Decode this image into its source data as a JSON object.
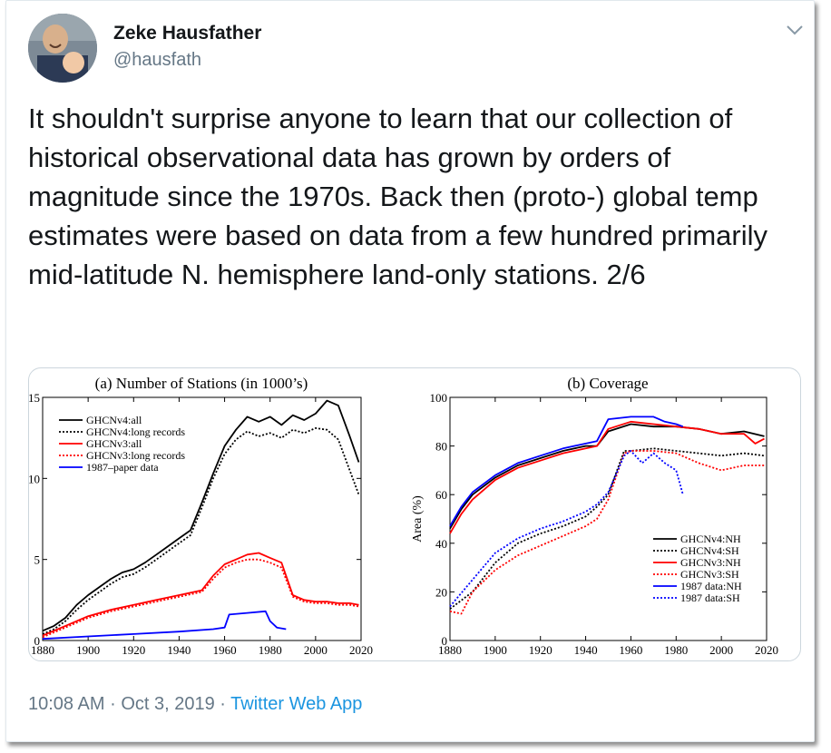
{
  "tweet": {
    "author_name": "Zeke Hausfather",
    "author_handle": "@hausfath",
    "text": "It shouldn't surprise anyone to learn that our collection of historical observational data has grown by orders of magnitude since the 1970s. Back then (proto-) global temp estimates were based on data from a few hundred primarily mid-latitude N. hemisphere land-only stations. 2/6",
    "time": "10:08 AM",
    "separator": "·",
    "date": "Oct 3, 2019",
    "app": "Twitter Web App",
    "icons": {
      "avatar": "avatar",
      "menu": "chevron-down-icon"
    }
  },
  "chart_data": [
    {
      "type": "line",
      "title": "(a) Number of Stations (in 1000’s)",
      "xlim": [
        1880,
        2020
      ],
      "ylim": [
        0,
        15
      ],
      "xticks": [
        1880,
        1900,
        1920,
        1940,
        1960,
        1980,
        2000,
        2020
      ],
      "yticks": [
        0,
        5,
        10,
        15
      ],
      "legend_position": "top-left",
      "series": [
        {
          "name": "GHCNv4:all",
          "color": "#000000",
          "dash": "solid",
          "x": [
            1880,
            1885,
            1890,
            1895,
            1900,
            1905,
            1910,
            1915,
            1920,
            1925,
            1930,
            1935,
            1940,
            1945,
            1950,
            1955,
            1960,
            1965,
            1970,
            1975,
            1980,
            1985,
            1990,
            1995,
            2000,
            2005,
            2010,
            2015,
            2019
          ],
          "y": [
            0.6,
            0.9,
            1.4,
            2.2,
            2.8,
            3.3,
            3.8,
            4.2,
            4.4,
            4.8,
            5.3,
            5.8,
            6.3,
            6.8,
            8.5,
            10.3,
            12.0,
            13.0,
            13.8,
            13.5,
            13.8,
            13.3,
            13.9,
            13.6,
            14.0,
            14.8,
            14.5,
            12.6,
            11.0
          ]
        },
        {
          "name": "GHCNv4:long records",
          "color": "#000000",
          "dash": "dotted",
          "x": [
            1880,
            1885,
            1890,
            1895,
            1900,
            1905,
            1910,
            1915,
            1920,
            1925,
            1930,
            1935,
            1940,
            1945,
            1950,
            1955,
            1960,
            1965,
            1970,
            1975,
            1980,
            1985,
            1990,
            1995,
            2000,
            2005,
            2010,
            2015,
            2019
          ],
          "y": [
            0.4,
            0.7,
            1.2,
            1.9,
            2.5,
            3.0,
            3.5,
            3.9,
            4.1,
            4.5,
            5.0,
            5.5,
            6.0,
            6.5,
            8.2,
            10.0,
            11.5,
            12.4,
            12.9,
            12.6,
            12.8,
            12.5,
            13.0,
            12.8,
            13.1,
            13.0,
            12.4,
            10.5,
            9.0
          ]
        },
        {
          "name": "GHCNv3:all",
          "color": "#ff0000",
          "dash": "solid",
          "x": [
            1880,
            1890,
            1900,
            1910,
            1920,
            1930,
            1940,
            1950,
            1955,
            1960,
            1965,
            1970,
            1975,
            1980,
            1985,
            1990,
            1995,
            2000,
            2005,
            2010,
            2015,
            2019
          ],
          "y": [
            0.3,
            0.9,
            1.5,
            1.9,
            2.2,
            2.5,
            2.8,
            3.1,
            4.0,
            4.7,
            5.0,
            5.3,
            5.4,
            5.1,
            4.8,
            2.8,
            2.5,
            2.4,
            2.4,
            2.3,
            2.3,
            2.2
          ]
        },
        {
          "name": "GHCNv3:long records",
          "color": "#ff0000",
          "dash": "dotted",
          "x": [
            1880,
            1890,
            1900,
            1910,
            1920,
            1930,
            1940,
            1950,
            1955,
            1960,
            1965,
            1970,
            1975,
            1980,
            1985,
            1990,
            1995,
            2000,
            2005,
            2010,
            2015,
            2019
          ],
          "y": [
            0.2,
            0.8,
            1.4,
            1.8,
            2.1,
            2.4,
            2.7,
            3.0,
            3.8,
            4.5,
            4.8,
            5.0,
            5.0,
            4.8,
            4.5,
            2.7,
            2.4,
            2.3,
            2.3,
            2.2,
            2.2,
            2.1
          ]
        },
        {
          "name": "1987–paper data",
          "color": "#0000ff",
          "dash": "solid",
          "x": [
            1880,
            1900,
            1920,
            1940,
            1955,
            1960,
            1962,
            1970,
            1978,
            1980,
            1983,
            1987
          ],
          "y": [
            0.1,
            0.25,
            0.4,
            0.55,
            0.7,
            0.8,
            1.6,
            1.7,
            1.8,
            1.2,
            0.8,
            0.7
          ]
        }
      ]
    },
    {
      "type": "line",
      "title": "(b) Coverage",
      "ylabel": "Area (%)",
      "xlim": [
        1880,
        2020
      ],
      "ylim": [
        0,
        100
      ],
      "xticks": [
        1880,
        1900,
        1920,
        1940,
        1960,
        1980,
        2000,
        2020
      ],
      "yticks": [
        0,
        20,
        40,
        60,
        80,
        100
      ],
      "legend_position": "bottom-right",
      "series": [
        {
          "name": "GHCNv4:NH",
          "color": "#000000",
          "dash": "solid",
          "x": [
            1880,
            1885,
            1890,
            1900,
            1910,
            1920,
            1930,
            1940,
            1945,
            1950,
            1960,
            1970,
            1980,
            1990,
            2000,
            2010,
            2019
          ],
          "y": [
            46,
            54,
            60,
            67,
            72,
            75,
            78,
            80,
            80,
            86,
            89,
            88,
            88,
            87,
            85,
            86,
            84
          ]
        },
        {
          "name": "GHCNv4:SH",
          "color": "#000000",
          "dash": "dotted",
          "x": [
            1880,
            1890,
            1900,
            1910,
            1920,
            1930,
            1940,
            1945,
            1950,
            1957,
            1960,
            1970,
            1980,
            1990,
            2000,
            2010,
            2019
          ],
          "y": [
            13,
            20,
            32,
            40,
            44,
            47,
            51,
            55,
            60,
            78,
            78,
            79,
            78,
            77,
            76,
            77,
            76
          ]
        },
        {
          "name": "GHCNv3:NH",
          "color": "#ff0000",
          "dash": "solid",
          "x": [
            1880,
            1885,
            1890,
            1900,
            1910,
            1920,
            1930,
            1940,
            1945,
            1950,
            1960,
            1970,
            1980,
            1990,
            2000,
            2010,
            2015,
            2019
          ],
          "y": [
            44,
            52,
            58,
            66,
            71,
            74,
            77,
            79,
            80,
            87,
            90,
            89,
            88,
            87,
            85,
            85,
            81,
            83
          ]
        },
        {
          "name": "GHCNv3:SH",
          "color": "#ff0000",
          "dash": "dotted",
          "x": [
            1880,
            1885,
            1890,
            1900,
            1910,
            1920,
            1930,
            1940,
            1945,
            1950,
            1957,
            1960,
            1970,
            1980,
            1990,
            2000,
            2010,
            2019
          ],
          "y": [
            12,
            11,
            20,
            29,
            35,
            39,
            43,
            47,
            50,
            58,
            77,
            78,
            78,
            77,
            73,
            70,
            72,
            72
          ]
        },
        {
          "name": "1987 data:NH",
          "color": "#0000ff",
          "dash": "solid",
          "x": [
            1880,
            1885,
            1890,
            1900,
            1910,
            1920,
            1930,
            1940,
            1945,
            1950,
            1960,
            1970,
            1975,
            1980,
            1983
          ],
          "y": [
            47,
            55,
            61,
            68,
            73,
            76,
            79,
            81,
            82,
            91,
            92,
            92,
            90,
            89,
            88
          ]
        },
        {
          "name": "1987 data:SH",
          "color": "#0000ff",
          "dash": "dotted",
          "x": [
            1880,
            1890,
            1900,
            1910,
            1920,
            1930,
            1940,
            1945,
            1950,
            1957,
            1960,
            1965,
            1970,
            1975,
            1980,
            1983
          ],
          "y": [
            14,
            25,
            36,
            42,
            46,
            49,
            53,
            56,
            61,
            76,
            78,
            73,
            77,
            73,
            70,
            60
          ]
        }
      ]
    }
  ]
}
